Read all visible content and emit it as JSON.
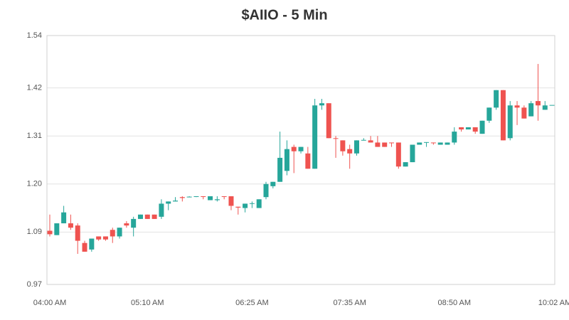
{
  "chart_data": {
    "type": "candlestick",
    "title": "$AIIO - 5 Min",
    "x": [
      240,
      245,
      250,
      255,
      260,
      265,
      270,
      275,
      280,
      285,
      290,
      295,
      300,
      305,
      310,
      315,
      320,
      325,
      330,
      335,
      340,
      345,
      350,
      355,
      360,
      365,
      370,
      375,
      380,
      385,
      390,
      395,
      400,
      405,
      410,
      415,
      420,
      425,
      430,
      435,
      440,
      445,
      450,
      455,
      460,
      465,
      470,
      475,
      480,
      485,
      490,
      495,
      500,
      505,
      510,
      515,
      520,
      525,
      530,
      535,
      540,
      545,
      550,
      555,
      560,
      565,
      570,
      575,
      580,
      585,
      590,
      595,
      600
    ],
    "open": [
      1.093,
      1.083,
      1.11,
      1.11,
      1.105,
      1.065,
      1.05,
      1.08,
      1.08,
      1.095,
      1.08,
      1.11,
      1.1,
      1.12,
      1.13,
      1.13,
      1.125,
      1.155,
      1.16,
      1.17,
      1.17,
      1.172,
      1.172,
      1.163,
      1.163,
      1.172,
      1.172,
      1.148,
      1.145,
      1.155,
      1.145,
      1.17,
      1.195,
      1.205,
      1.23,
      1.285,
      1.275,
      1.27,
      1.235,
      1.38,
      1.385,
      1.305,
      1.3,
      1.28,
      1.27,
      1.3,
      1.3,
      1.295,
      1.295,
      1.295,
      1.295,
      1.24,
      1.25,
      1.29,
      1.295,
      1.295,
      1.29,
      1.29,
      1.295,
      1.33,
      1.325,
      1.33,
      1.315,
      1.345,
      1.375,
      1.415,
      1.305,
      1.38,
      1.375,
      1.355,
      1.39,
      1.37,
      1.38
    ],
    "high": [
      1.13,
      1.11,
      1.15,
      1.13,
      1.11,
      1.07,
      1.075,
      1.08,
      1.08,
      1.1,
      1.1,
      1.115,
      1.125,
      1.13,
      1.13,
      1.13,
      1.165,
      1.16,
      1.17,
      1.172,
      1.172,
      1.172,
      1.172,
      1.172,
      1.172,
      1.172,
      1.172,
      1.148,
      1.155,
      1.16,
      1.165,
      1.205,
      1.205,
      1.32,
      1.3,
      1.29,
      1.285,
      1.285,
      1.395,
      1.395,
      1.385,
      1.31,
      1.3,
      1.29,
      1.3,
      1.305,
      1.31,
      1.31,
      1.295,
      1.295,
      1.295,
      1.25,
      1.29,
      1.295,
      1.295,
      1.295,
      1.295,
      1.295,
      1.33,
      1.33,
      1.33,
      1.33,
      1.345,
      1.375,
      1.415,
      1.415,
      1.39,
      1.39,
      1.38,
      1.39,
      1.475,
      1.39,
      1.38
    ],
    "low": [
      1.08,
      1.083,
      1.11,
      1.095,
      1.04,
      1.045,
      1.045,
      1.07,
      1.07,
      1.065,
      1.075,
      1.1,
      1.08,
      1.12,
      1.12,
      1.12,
      1.12,
      1.14,
      1.16,
      1.16,
      1.17,
      1.17,
      1.165,
      1.163,
      1.16,
      1.165,
      1.14,
      1.13,
      1.135,
      1.145,
      1.145,
      1.165,
      1.19,
      1.205,
      1.22,
      1.225,
      1.27,
      1.235,
      1.235,
      1.37,
      1.305,
      1.26,
      1.265,
      1.235,
      1.265,
      1.3,
      1.295,
      1.285,
      1.285,
      1.285,
      1.235,
      1.24,
      1.25,
      1.29,
      1.285,
      1.29,
      1.29,
      1.29,
      1.29,
      1.32,
      1.325,
      1.315,
      1.315,
      1.34,
      1.37,
      1.3,
      1.3,
      1.335,
      1.35,
      1.355,
      1.345,
      1.37,
      1.38
    ],
    "close": [
      1.085,
      1.11,
      1.135,
      1.1,
      1.07,
      1.045,
      1.075,
      1.073,
      1.073,
      1.08,
      1.1,
      1.105,
      1.12,
      1.13,
      1.12,
      1.12,
      1.155,
      1.16,
      1.162,
      1.168,
      1.171,
      1.172,
      1.171,
      1.172,
      1.165,
      1.171,
      1.15,
      1.146,
      1.155,
      1.156,
      1.165,
      1.2,
      1.205,
      1.26,
      1.28,
      1.275,
      1.285,
      1.235,
      1.38,
      1.385,
      1.305,
      1.304,
      1.275,
      1.27,
      1.3,
      1.301,
      1.295,
      1.285,
      1.285,
      1.294,
      1.24,
      1.25,
      1.29,
      1.295,
      1.296,
      1.294,
      1.295,
      1.295,
      1.32,
      1.325,
      1.33,
      1.32,
      1.345,
      1.375,
      1.415,
      1.3,
      1.38,
      1.375,
      1.35,
      1.385,
      1.38,
      1.38,
      1.381
    ],
    "up_color": "#26a69a",
    "down_color": "#ef5350",
    "xlim": [
      240,
      602
    ],
    "xticks": [
      {
        "value": 240,
        "label": "04:00 AM"
      },
      {
        "value": 310,
        "label": "05:10 AM"
      },
      {
        "value": 385,
        "label": "06:25 AM"
      },
      {
        "value": 455,
        "label": "07:35 AM"
      },
      {
        "value": 530,
        "label": "08:50 AM"
      },
      {
        "value": 602,
        "label": "10:02 AM"
      }
    ],
    "ylim": [
      0.97,
      1.54
    ],
    "yticks": [
      0.97,
      1.09,
      {
        "value": 1.2,
        "label": "1.20"
      },
      1.31,
      1.42,
      1.54
    ],
    "grid": true
  }
}
